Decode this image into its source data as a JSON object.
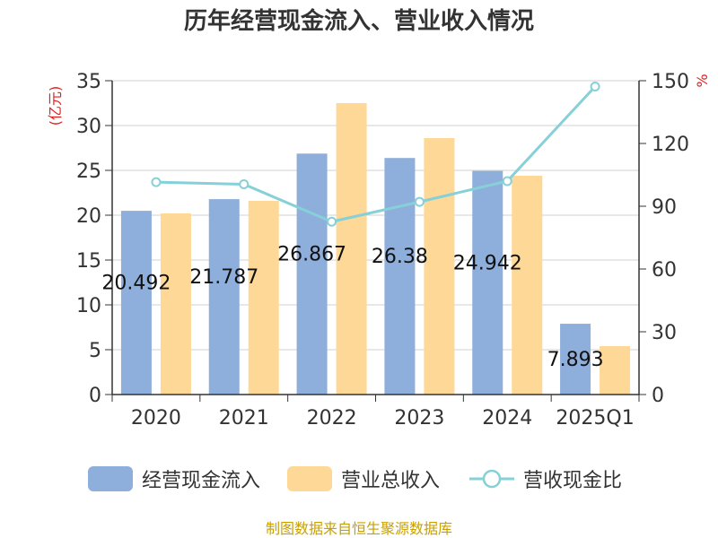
{
  "chart_data": {
    "type": "bar",
    "title": "历年经营现金流入、营业收入情况",
    "categories": [
      "2020",
      "2021",
      "2022",
      "2023",
      "2024",
      "2025Q1"
    ],
    "left_axis": {
      "unit": "(亿元)",
      "ylim": [
        0,
        35
      ],
      "ticks": [
        0,
        5,
        10,
        15,
        20,
        25,
        30,
        35
      ]
    },
    "right_axis": {
      "unit": "%",
      "ylim": [
        0,
        150
      ],
      "ticks": [
        0,
        30,
        60,
        90,
        120,
        150
      ]
    },
    "series": [
      {
        "name": "经营现金流入",
        "type": "bar",
        "axis": "left",
        "color": "#8eaedb",
        "values": [
          20.49,
          21.79,
          26.87,
          26.38,
          24.94,
          7.893
        ]
      },
      {
        "name": "营业总收入",
        "type": "bar",
        "axis": "left",
        "color": "#fdd897",
        "values": [
          20.2,
          21.6,
          32.5,
          28.6,
          24.4,
          5.4
        ]
      },
      {
        "name": "营收现金比",
        "type": "line",
        "axis": "right",
        "color": "#86d0d8",
        "values": [
          101.5,
          100.5,
          82.6,
          92.1,
          102.0,
          147.2
        ]
      }
    ],
    "data_labels": [
      "20.492",
      "21.787",
      "26.867",
      "26.38",
      "24.942",
      "7.893"
    ],
    "grid": true,
    "legend": "bottom"
  },
  "source": "制图数据来自恒生聚源数据库"
}
